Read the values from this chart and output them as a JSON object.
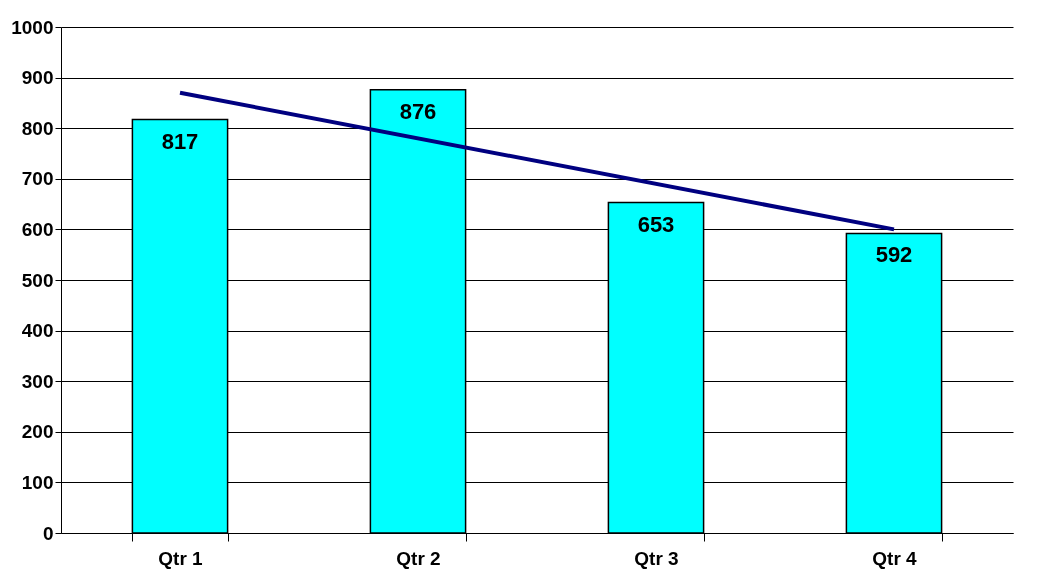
{
  "chart_data": {
    "type": "bar",
    "categories": [
      "Qtr 1",
      "Qtr 2",
      "Qtr 3",
      "Qtr 4"
    ],
    "series": [
      {
        "color": "#00ffff",
        "values": [
          817,
          876,
          653,
          592
        ],
        "value_labels": [
          "817",
          "876",
          "653",
          "592"
        ]
      },
      {
        "type": "line",
        "color": "#000080",
        "x": [
          "Qtr 1",
          "Qtr 4"
        ],
        "values": [
          870,
          600
        ]
      }
    ],
    "ylim": [
      0,
      1000
    ],
    "yticks": [
      0,
      100,
      200,
      300,
      400,
      500,
      600,
      700,
      800,
      900,
      1000
    ],
    "grid": "y"
  }
}
